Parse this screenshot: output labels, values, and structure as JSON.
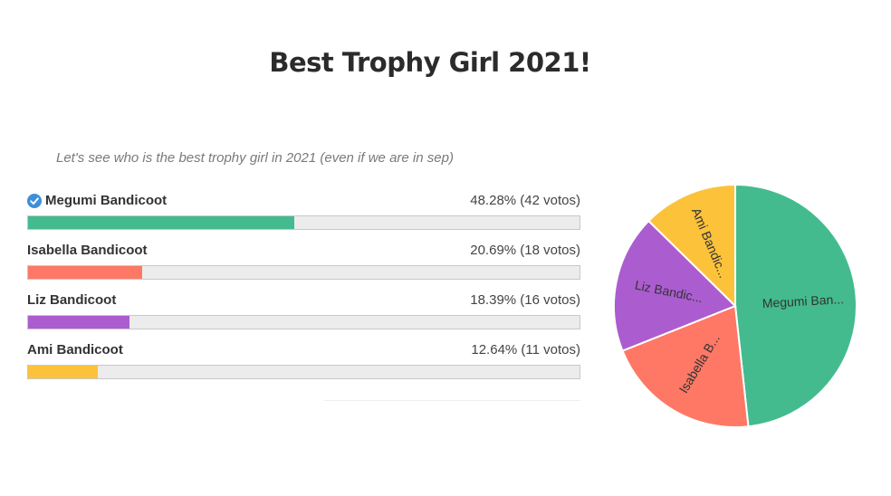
{
  "poll": {
    "title": "Best Trophy Girl 2021!",
    "description": "Let's see who is the best trophy girl in 2021 (even if we are in sep)",
    "options": [
      {
        "label": "Megumi Bandicoot",
        "stats": "48.28% (42 votos)",
        "percent": 48.28,
        "color": "#43bb8f",
        "voted": true
      },
      {
        "label": "Isabella Bandicoot",
        "stats": "20.69% (18 votos)",
        "percent": 20.69,
        "color": "#fe7865",
        "voted": false
      },
      {
        "label": "Liz Bandicoot",
        "stats": "18.39% (16 votos)",
        "percent": 18.39,
        "color": "#ab5dd0",
        "voted": false
      },
      {
        "label": "Ami Bandicoot",
        "stats": "12.64% (11 votos)",
        "percent": 12.64,
        "color": "#fcc23a",
        "voted": false
      }
    ]
  },
  "chart_data": {
    "type": "pie",
    "categories": [
      "Megumi Bandicoot",
      "Isabella Bandicoot",
      "Liz Bandicoot",
      "Ami Bandicoot"
    ],
    "values": [
      42,
      18,
      16,
      11
    ],
    "slice_labels": [
      "Megumi Ban...",
      "Isabella B...",
      "Liz Bandic...",
      "Ami Bandic..."
    ],
    "colors": [
      "#43bb8f",
      "#fe7865",
      "#ab5dd0",
      "#fcc23a"
    ],
    "start": "top",
    "direction": "clockwise"
  },
  "icons": {
    "voted_marker": "check-circle-icon",
    "voted_color": "#3d8fd9"
  }
}
